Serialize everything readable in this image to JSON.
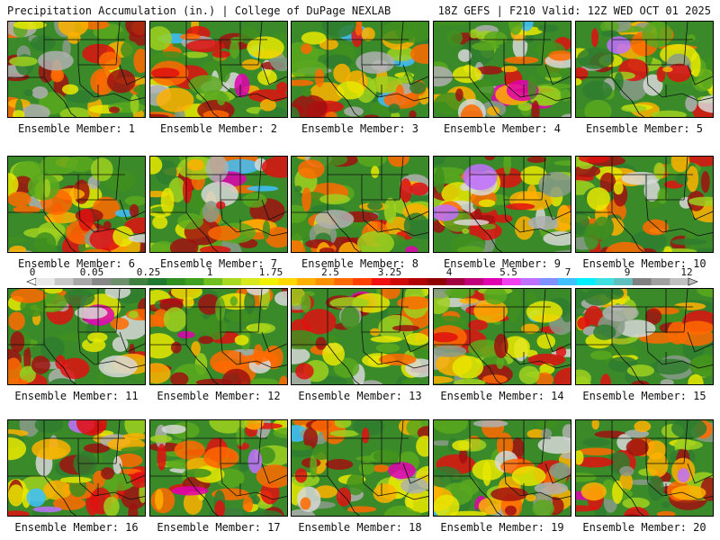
{
  "header": {
    "title": "Precipitation Accumulation (in.) | College of DuPage NEXLAB",
    "run_info": "18Z GEFS | F210 Valid: 12Z WED OCT 01 2025"
  },
  "members": [
    {
      "label": "Ensemble Member: 1"
    },
    {
      "label": "Ensemble Member: 2"
    },
    {
      "label": "Ensemble Member: 3"
    },
    {
      "label": "Ensemble Member: 4"
    },
    {
      "label": "Ensemble Member: 5"
    },
    {
      "label": "Ensemble Member: 6"
    },
    {
      "label": "Ensemble Member: 7"
    },
    {
      "label": "Ensemble Member: 8"
    },
    {
      "label": "Ensemble Member: 9"
    },
    {
      "label": "Ensemble Member: 10"
    },
    {
      "label": "Ensemble Member: 11"
    },
    {
      "label": "Ensemble Member: 12"
    },
    {
      "label": "Ensemble Member: 13"
    },
    {
      "label": "Ensemble Member: 14"
    },
    {
      "label": "Ensemble Member: 15"
    },
    {
      "label": "Ensemble Member: 16"
    },
    {
      "label": "Ensemble Member: 17"
    },
    {
      "label": "Ensemble Member: 18"
    },
    {
      "label": "Ensemble Member: 19"
    },
    {
      "label": "Ensemble Member: 20"
    }
  ],
  "colorbar": {
    "tick_labels": [
      "0",
      "0.05",
      "0.25",
      "1",
      "1.75",
      "2.5",
      "3.25",
      "4",
      "5.5",
      "7",
      "9",
      "12"
    ],
    "colors": [
      "#e8e8e8",
      "#c8c8c8",
      "#a8a8a8",
      "#888888",
      "#6f8f6f",
      "#3f7f3f",
      "#1f7a2f",
      "#2f8f1f",
      "#3fa01f",
      "#6fbf1f",
      "#a8d81f",
      "#d8e81f",
      "#f0f000",
      "#ffd800",
      "#ffb000",
      "#ff9000",
      "#ff6a00",
      "#ff4000",
      "#f01010",
      "#d00808",
      "#b00000",
      "#900000",
      "#a00040",
      "#c0007a",
      "#e000b0",
      "#f040f0",
      "#c070ff",
      "#8090ff",
      "#40c0ff",
      "#00f0ff",
      "#40e0e0",
      "#60c0c0",
      "#808080",
      "#a0a0a0",
      "#c0c0c0"
    ]
  }
}
